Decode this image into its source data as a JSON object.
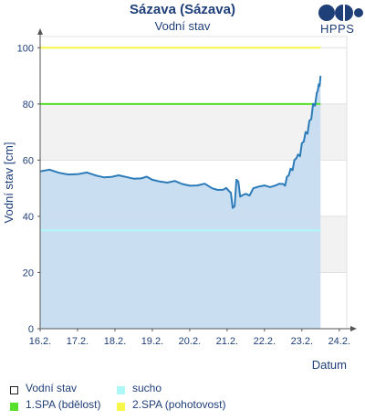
{
  "title": "Sázava (Sázava)",
  "subtitle": "Vodní stav",
  "logo_text": "HPPS",
  "chart_data": {
    "type": "area",
    "title": "Sázava (Sázava)",
    "subtitle": "Vodní stav",
    "xlabel": "Datum",
    "ylabel": "Vodní stav [cm]",
    "x_ticks": [
      "16.2.",
      "17.2.",
      "18.2.",
      "19.2.",
      "20.2.",
      "21.2.",
      "22.2.",
      "23.2.",
      "24.2."
    ],
    "y_ticks": [
      0,
      20,
      40,
      60,
      80,
      100
    ],
    "xlim_days": [
      16,
      24.2
    ],
    "ylim": [
      0,
      104
    ],
    "grid": true,
    "series": [
      {
        "name": "Vodní stav",
        "color": "#2b7bb9",
        "fill": "#c7dcf0",
        "x_days": [
          16.0,
          16.5,
          17.0,
          17.5,
          17.9,
          18.3,
          18.7,
          19.0,
          19.4,
          19.8,
          20.2,
          20.6,
          20.9,
          21.05,
          21.15,
          21.25,
          21.35,
          21.5,
          21.7,
          22.0,
          22.3,
          22.5,
          22.6,
          22.7,
          22.8,
          22.9,
          23.0,
          23.1,
          23.2,
          23.3,
          23.4,
          23.45,
          23.5
        ],
        "values": [
          56,
          55.5,
          55,
          54.5,
          54,
          54,
          53.5,
          53,
          52,
          51.5,
          51,
          50,
          49.5,
          49,
          43,
          53,
          47,
          48,
          50,
          51,
          51,
          51.5,
          54,
          57,
          60,
          62,
          66,
          70,
          74,
          80,
          84,
          87,
          90
        ]
      }
    ],
    "thresholds": [
      {
        "name": "sucho",
        "value": 35,
        "color": "#aef7f7"
      },
      {
        "name": "1.SPA (bdělost)",
        "value": 80,
        "color": "#56e02c"
      },
      {
        "name": "2.SPA (pohotovost)",
        "value": 100,
        "color": "#f7f74a"
      }
    ],
    "shaded_bands": [
      [
        20,
        40
      ],
      [
        60,
        80
      ]
    ]
  },
  "legend": {
    "items": [
      {
        "label": "Vodní stav",
        "color": "#ffffff",
        "border": "#222222"
      },
      {
        "label": "sucho",
        "color": "#aef7f7",
        "border": "#aef7f7"
      },
      {
        "label": "1.SPA (bdělost)",
        "color": "#56e02c",
        "border": "#56e02c"
      },
      {
        "label": "2.SPA (pohotovost)",
        "color": "#f7f74a",
        "border": "#f7f74a"
      }
    ]
  }
}
